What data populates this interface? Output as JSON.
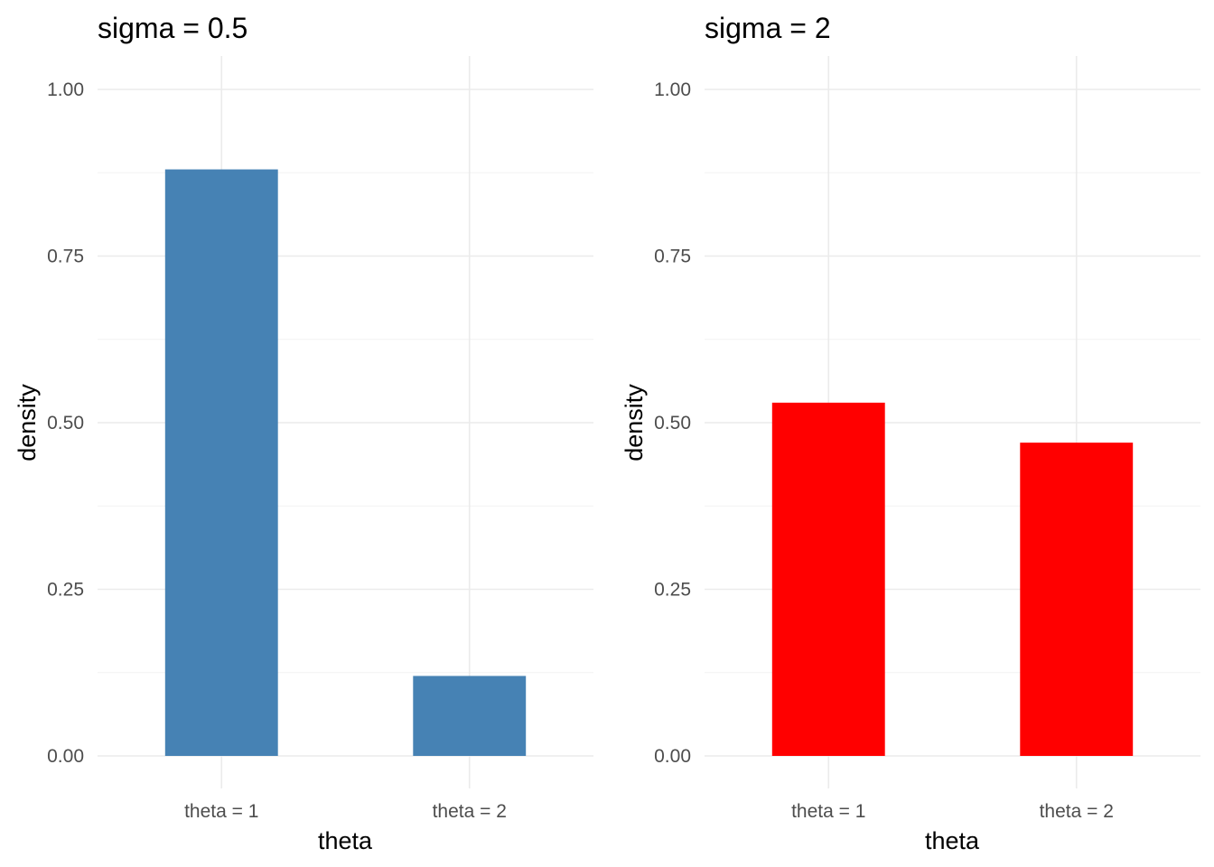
{
  "chart_data": [
    {
      "type": "bar",
      "title": "sigma = 0.5",
      "xlabel": "theta",
      "ylabel": "density",
      "categories": [
        "theta = 1",
        "theta = 2"
      ],
      "values": [
        0.88,
        0.12
      ],
      "ylim": [
        0,
        1
      ],
      "yticks": [
        "0.00",
        "0.25",
        "0.50",
        "0.75",
        "1.00"
      ],
      "ytick_values": [
        0,
        0.25,
        0.5,
        0.75,
        1.0
      ],
      "bar_color": "#4682B4",
      "grid": true,
      "legend": "none"
    },
    {
      "type": "bar",
      "title": "sigma = 2",
      "xlabel": "theta",
      "ylabel": "density",
      "categories": [
        "theta = 1",
        "theta = 2"
      ],
      "values": [
        0.53,
        0.47
      ],
      "ylim": [
        0,
        1
      ],
      "yticks": [
        "0.00",
        "0.25",
        "0.50",
        "0.75",
        "1.00"
      ],
      "ytick_values": [
        0,
        0.25,
        0.5,
        0.75,
        1.0
      ],
      "bar_color": "#FF0000",
      "grid": true,
      "legend": "none"
    }
  ]
}
